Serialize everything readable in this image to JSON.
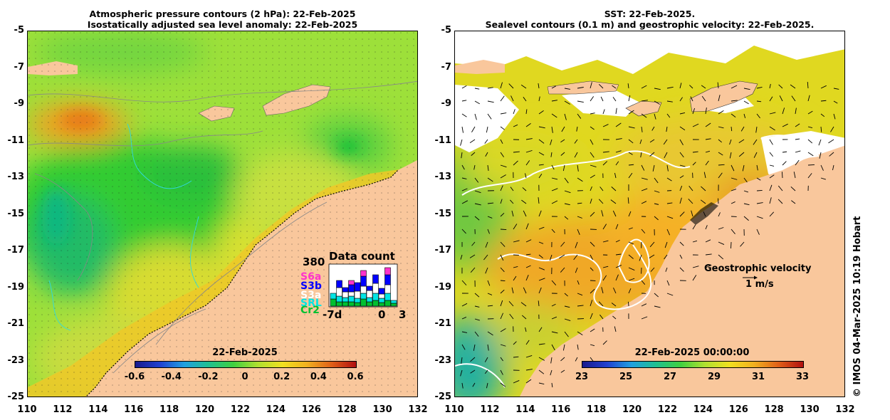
{
  "left_panel": {
    "title_line1": "Atmospheric pressure contours (2 hPa): 22-Feb-2025",
    "title_line2": "Isostatically adjusted sea level anomaly: 22-Feb-2025",
    "colorbar": {
      "title": "22-Feb-2025",
      "ticks": [
        "-0.6",
        "-0.4",
        "-0.2",
        "0",
        "0.2",
        "0.4",
        "0.6"
      ],
      "range": [
        -0.6,
        0.6
      ]
    },
    "data_count": {
      "title": "Data count",
      "max_label": "380",
      "satellites": [
        "S6a",
        "S3b",
        "S3a",
        "SRL",
        "Cr2"
      ],
      "satellite_colors": [
        "#ff33cc",
        "#0000ff",
        "#ffffff",
        "#00e5e5",
        "#00c030"
      ],
      "x_labels": [
        "-7d",
        "0",
        "3"
      ]
    }
  },
  "right_panel": {
    "title_line1": "SST: 22-Feb-2025.",
    "title_line2": "Sealevel contours (0.1 m) and geostrophic velocity: 22-Feb-2025.",
    "colorbar": {
      "title": "22-Feb-2025 00:00:00",
      "ticks": [
        "23",
        "25",
        "27",
        "29",
        "31",
        "33"
      ],
      "range": [
        23,
        33
      ]
    },
    "legend": {
      "label": "Geostrophic velocity",
      "scale": "1 m/s"
    }
  },
  "axes": {
    "y_ticks": [
      "-5",
      "-7",
      "-9",
      "-11",
      "-13",
      "-15",
      "-17",
      "-19",
      "-21",
      "-23",
      "-25"
    ],
    "x_ticks": [
      "110",
      "112",
      "114",
      "116",
      "118",
      "120",
      "122",
      "124",
      "126",
      "128",
      "130",
      "132"
    ],
    "lat_range": [
      -25,
      -5
    ],
    "lon_range": [
      110,
      132
    ]
  },
  "credit": "© IMOS 04-Mar-2025 10:19 Hobart",
  "colors": {
    "land": "#f9c79c",
    "sla_green": "#33cc33",
    "sla_yellow": "#d8e830",
    "sst_orange": "#f5a020",
    "sst_yellow": "#e8e020"
  }
}
